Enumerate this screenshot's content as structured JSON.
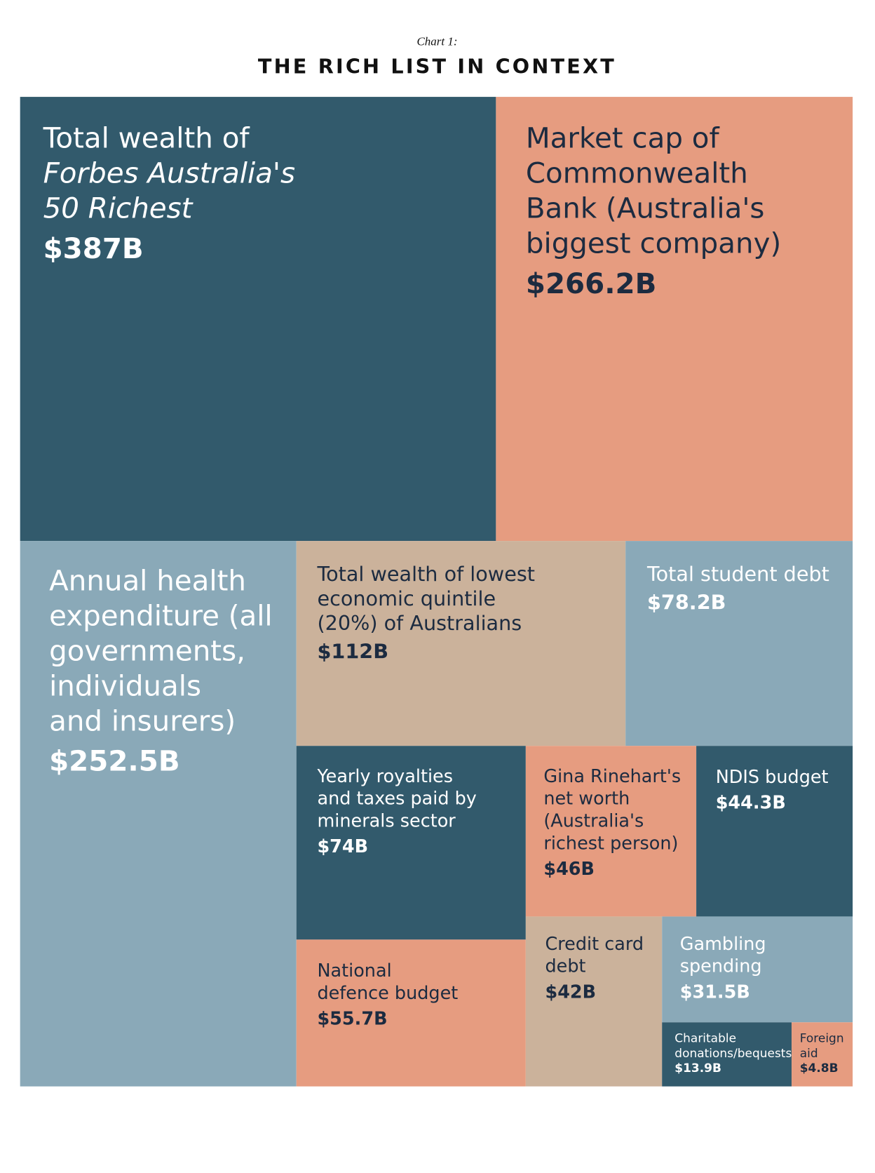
{
  "chart_data": {
    "type": "treemap",
    "subtitle": "Chart 1:",
    "title": "THE RICH LIST IN CONTEXT",
    "categories": [
      [
        "Total wealth of",
        {
          "text": "Forbes Australia's",
          "style": "italic"
        },
        {
          "text": "50 Richest",
          "style": "italic"
        }
      ],
      [
        "Market cap of",
        "Commonwealth",
        "Bank (Australia's",
        "biggest company)"
      ],
      [
        "Annual health",
        "expenditure (all",
        "governments,",
        "individuals",
        "and insurers)"
      ],
      [
        "Total wealth of lowest",
        "economic quintile",
        "(20%) of Australians"
      ],
      [
        "Total student debt"
      ],
      [
        "Yearly royalties",
        "and taxes paid by",
        "minerals sector"
      ],
      [
        "Gina Rinehart's",
        "net worth",
        "(Australia's",
        "richest person)"
      ],
      [
        "NDIS budget"
      ],
      [
        "National",
        "defence budget"
      ],
      [
        "Credit card",
        "debt"
      ],
      [
        "Gambling",
        "spending"
      ],
      [
        "Charitable",
        "donations/bequests"
      ],
      [
        "Foreign",
        "aid"
      ]
    ],
    "values": [
      387,
      266.2,
      252.5,
      112,
      78.2,
      74,
      46,
      44.3,
      55.7,
      42,
      31.5,
      13.9,
      4.8
    ],
    "value_labels": [
      "$387B",
      "$266.2B",
      "$252.5B",
      "$112B",
      "$78.2B",
      "$74B",
      "$46B",
      "$44.3B",
      "$55.7B",
      "$42B",
      "$31.5B",
      "$13.9B",
      "$4.8B"
    ],
    "colors": [
      "#325a6c",
      "#e69c80",
      "#8aa9b8",
      "#cbb29b",
      "#8aa9b8",
      "#325a6c",
      "#e69c80",
      "#325a6c",
      "#e69c80",
      "#cbb29b",
      "#8aa9b8",
      "#325a6c",
      "#e69c80"
    ]
  }
}
